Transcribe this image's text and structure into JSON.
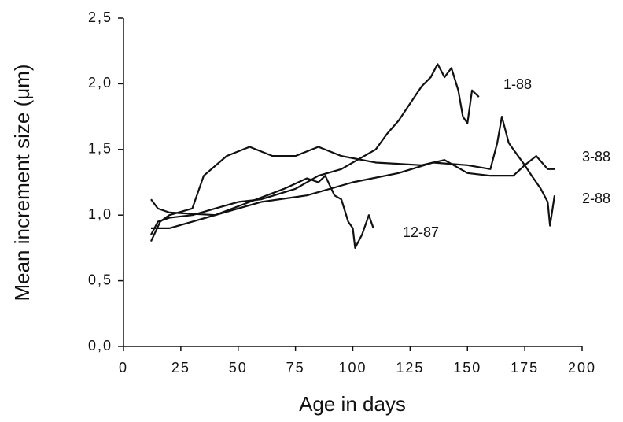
{
  "chart_data": {
    "type": "line",
    "x_label": "Age in days",
    "y_label": "Mean increment size (μm)",
    "xlim": [
      0,
      200
    ],
    "xticks": [
      0,
      25,
      50,
      75,
      100,
      125,
      150,
      175,
      200
    ],
    "ylim": [
      0,
      2.5
    ],
    "yticks": [
      {
        "value": 0,
        "label": "0,0"
      },
      {
        "value": 0.5,
        "label": "0,5"
      },
      {
        "value": 1,
        "label": "1,0"
      },
      {
        "value": 1.5,
        "label": "1,5"
      },
      {
        "value": 2,
        "label": "2,0"
      },
      {
        "value": 2.5,
        "label": "2,5"
      }
    ],
    "grid": false,
    "series": [
      {
        "name": "1-88",
        "color": "#111111",
        "x": [
          12,
          15,
          20,
          30,
          40,
          50,
          60,
          75,
          85,
          95,
          100,
          110,
          115,
          120,
          125,
          130,
          134,
          137,
          140,
          143,
          146,
          148,
          150,
          152,
          155
        ],
        "values": [
          0.85,
          0.95,
          0.98,
          1.0,
          1.05,
          1.1,
          1.12,
          1.2,
          1.3,
          1.35,
          1.4,
          1.5,
          1.62,
          1.72,
          1.85,
          1.98,
          2.05,
          2.15,
          2.05,
          2.12,
          1.95,
          1.75,
          1.7,
          1.95,
          1.9
        ]
      },
      {
        "name": "3-88",
        "color": "#111111",
        "x": [
          12,
          16,
          20,
          30,
          35,
          45,
          55,
          65,
          75,
          85,
          95,
          110,
          130,
          140,
          150,
          160,
          170,
          175,
          180,
          185,
          188
        ],
        "values": [
          0.8,
          0.95,
          1.0,
          1.05,
          1.3,
          1.45,
          1.52,
          1.45,
          1.45,
          1.52,
          1.45,
          1.4,
          1.38,
          1.42,
          1.32,
          1.3,
          1.3,
          1.38,
          1.45,
          1.35,
          1.35
        ]
      },
      {
        "name": "2-88",
        "color": "#111111",
        "x": [
          12,
          15,
          20,
          40,
          60,
          80,
          100,
          120,
          135,
          150,
          160,
          163,
          165,
          168,
          170,
          175,
          178,
          182,
          185,
          186,
          188
        ],
        "values": [
          1.12,
          1.05,
          1.02,
          1.0,
          1.1,
          1.15,
          1.25,
          1.32,
          1.4,
          1.38,
          1.35,
          1.55,
          1.75,
          1.55,
          1.5,
          1.38,
          1.3,
          1.2,
          1.1,
          0.92,
          1.15
        ]
      },
      {
        "name": "12-87",
        "color": "#111111",
        "x": [
          12,
          20,
          30,
          40,
          55,
          70,
          80,
          85,
          88,
          92,
          95,
          98,
          100,
          101,
          104,
          107,
          109
        ],
        "values": [
          0.9,
          0.9,
          0.95,
          1.0,
          1.1,
          1.2,
          1.28,
          1.25,
          1.3,
          1.15,
          1.12,
          0.95,
          0.9,
          0.75,
          0.85,
          1.0,
          0.9
        ]
      }
    ]
  }
}
